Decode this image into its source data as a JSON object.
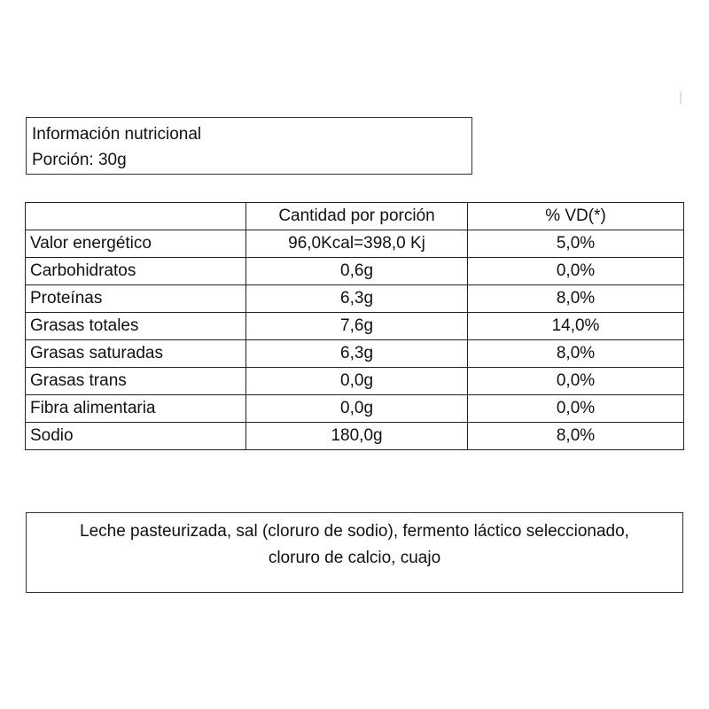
{
  "header": {
    "title": "Información nutricional",
    "portion": "Porción: 30g"
  },
  "table": {
    "headers": [
      "",
      "Cantidad por porción",
      "% VD(*)"
    ],
    "rows": [
      {
        "nutrient": "Valor energético",
        "amount": "96,0Kcal=398,0 Kj",
        "dv": "5,0%"
      },
      {
        "nutrient": "Carbohidratos",
        "amount": "0,6g",
        "dv": "0,0%"
      },
      {
        "nutrient": "Proteínas",
        "amount": "6,3g",
        "dv": "8,0%"
      },
      {
        "nutrient": "Grasas totales",
        "amount": "7,6g",
        "dv": "14,0%"
      },
      {
        "nutrient": "Grasas saturadas",
        "amount": "6,3g",
        "dv": "8,0%"
      },
      {
        "nutrient": "Grasas trans",
        "amount": "0,0g",
        "dv": "0,0%"
      },
      {
        "nutrient": "Fibra alimentaria",
        "amount": "0,0g",
        "dv": "0,0%"
      },
      {
        "nutrient": "Sodio",
        "amount": "180,0g",
        "dv": "8,0%"
      }
    ]
  },
  "ingredients": {
    "line1": "Leche pasteurizada, sal (cloruro de sodio), fermento láctico seleccionado,",
    "line2": "cloruro de calcio, cuajo"
  }
}
